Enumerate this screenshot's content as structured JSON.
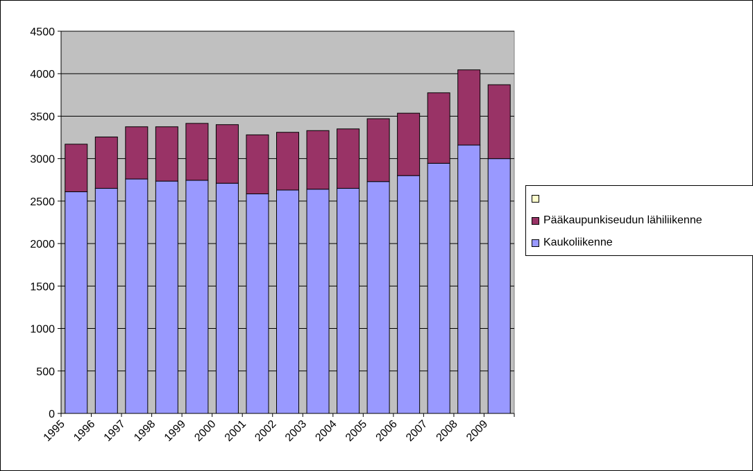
{
  "chart_data": {
    "type": "bar",
    "stacked": true,
    "categories": [
      "1995",
      "1996",
      "1997",
      "1998",
      "1999",
      "2000",
      "2001",
      "2002",
      "2003",
      "2004",
      "2005",
      "2006",
      "2007",
      "2008",
      "2009"
    ],
    "series": [
      {
        "name": "Kaukoliikenne",
        "color": "#9999ff",
        "values": [
          2610,
          2650,
          2760,
          2735,
          2745,
          2710,
          2585,
          2630,
          2640,
          2650,
          2730,
          2800,
          2945,
          3160,
          3000
        ]
      },
      {
        "name": "Pääkaupunkiseudun lähiliikenne",
        "color": "#993366",
        "values": [
          560,
          605,
          615,
          640,
          670,
          690,
          695,
          680,
          690,
          700,
          740,
          735,
          830,
          885,
          870
        ]
      },
      {
        "name": "",
        "color": "#ffffcc",
        "values": [
          0,
          0,
          0,
          0,
          0,
          0,
          0,
          0,
          0,
          0,
          0,
          0,
          0,
          0,
          0
        ]
      }
    ],
    "yticks": [
      "0",
      "500",
      "1000",
      "1500",
      "2000",
      "2500",
      "3000",
      "3500",
      "4000",
      "4500"
    ],
    "ylim": [
      0,
      4500
    ],
    "grid": true,
    "plot_background": "#c0c0c0",
    "legend_position": "right",
    "legend_order": [
      2,
      1,
      0
    ]
  }
}
